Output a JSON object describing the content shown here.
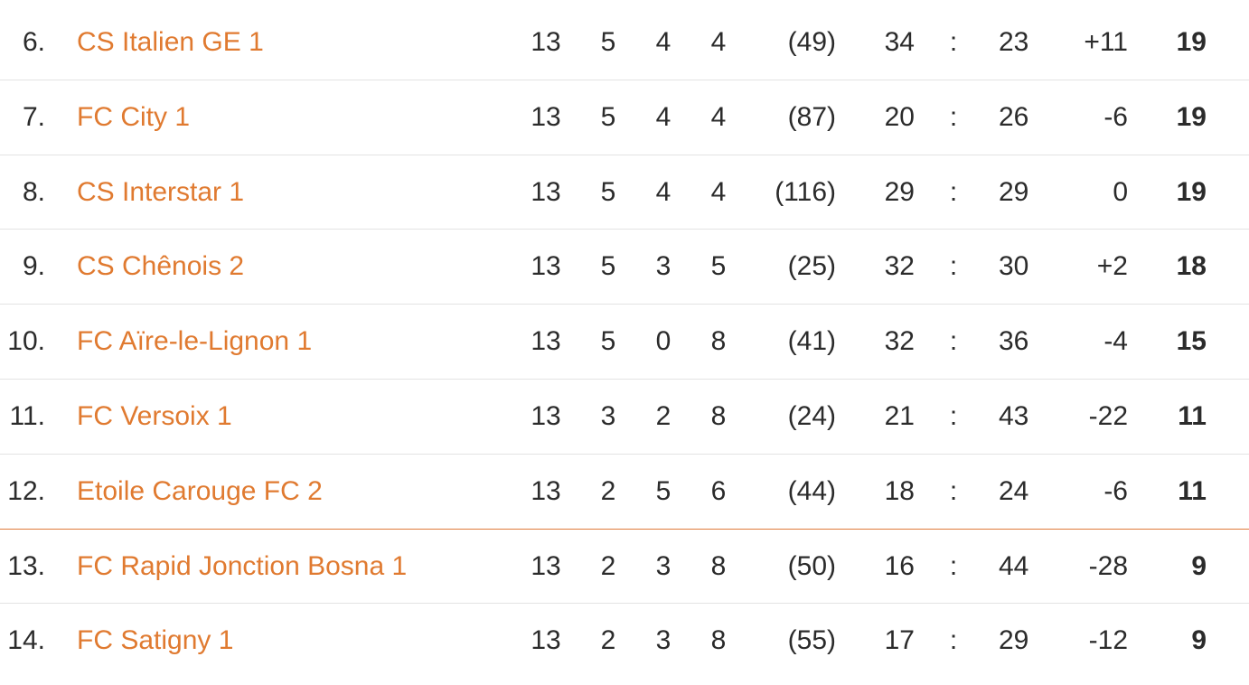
{
  "table": {
    "rows": [
      [
        "6.",
        "CS Italien GE 1",
        "13",
        "5",
        "4",
        "4",
        "(49)",
        "34",
        ":",
        "23",
        "+11",
        "19"
      ],
      [
        "7.",
        "FC City 1",
        "13",
        "5",
        "4",
        "4",
        "(87)",
        "20",
        ":",
        "26",
        "-6",
        "19"
      ],
      [
        "8.",
        "CS Interstar 1",
        "13",
        "5",
        "4",
        "4",
        "(116)",
        "29",
        ":",
        "29",
        "0",
        "19"
      ],
      [
        "9.",
        "CS Chênois 2",
        "13",
        "5",
        "3",
        "5",
        "(25)",
        "32",
        ":",
        "30",
        "+2",
        "18"
      ],
      [
        "10.",
        "FC Aïre-le-Lignon 1",
        "13",
        "5",
        "0",
        "8",
        "(41)",
        "32",
        ":",
        "36",
        "-4",
        "15"
      ],
      [
        "11.",
        "FC Versoix 1",
        "13",
        "3",
        "2",
        "8",
        "(24)",
        "21",
        ":",
        "43",
        "-22",
        "11"
      ],
      [
        "12.",
        "Etoile Carouge FC 2",
        "13",
        "2",
        "5",
        "6",
        "(44)",
        "18",
        ":",
        "24",
        "-6",
        "11"
      ],
      [
        "13.",
        "FC Rapid Jonction Bosna 1",
        "13",
        "2",
        "3",
        "8",
        "(50)",
        "16",
        ":",
        "44",
        "-28",
        "9"
      ],
      [
        "14.",
        "FC Satigny 1",
        "13",
        "2",
        "3",
        "8",
        "(55)",
        "17",
        ":",
        "29",
        "-12",
        "9"
      ]
    ]
  }
}
